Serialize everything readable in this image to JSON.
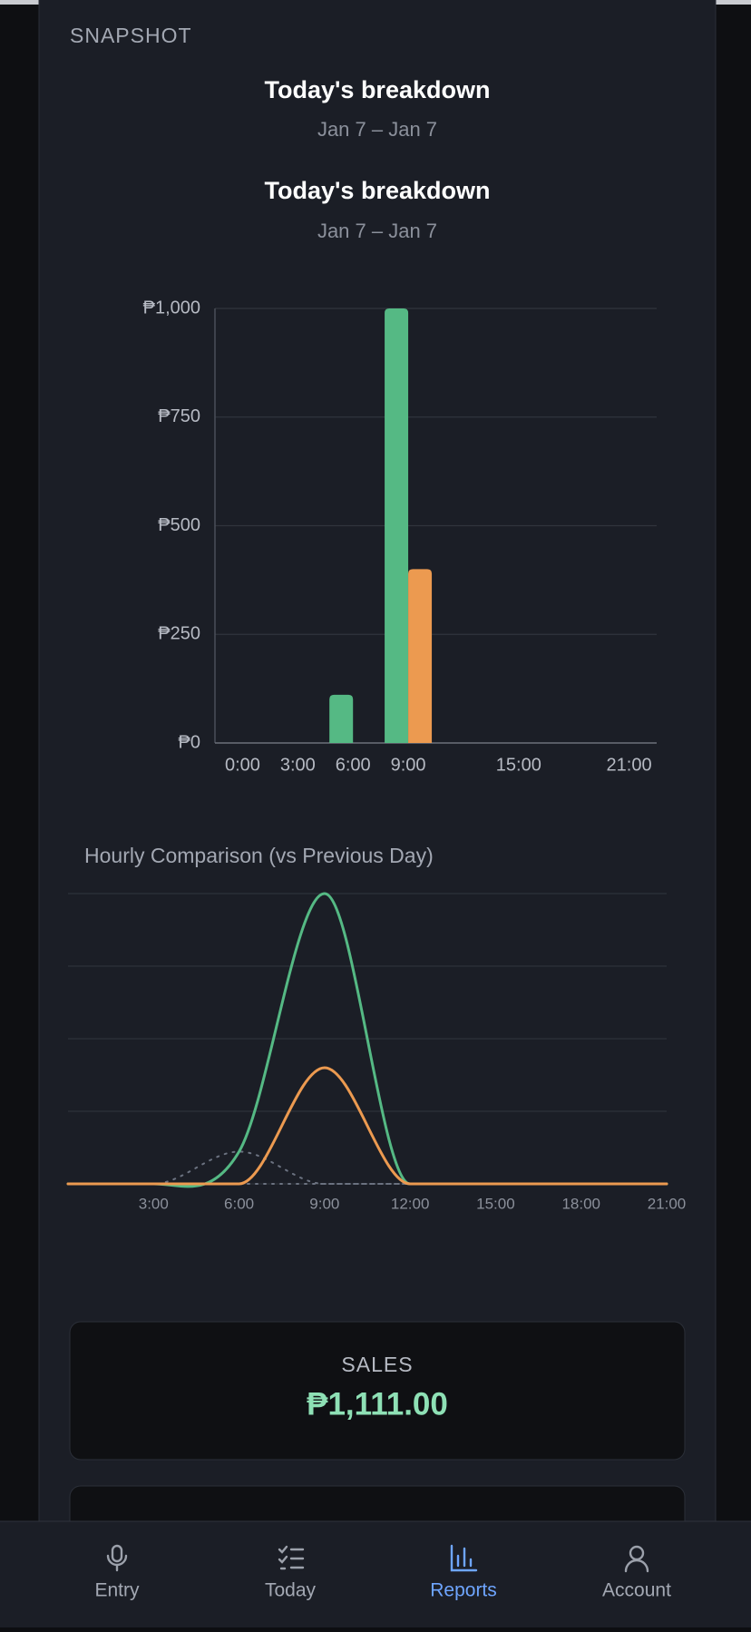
{
  "section_label": "SNAPSHOT",
  "heading": {
    "title": "Today's breakdown",
    "subtitle": "Jan 7 – Jan 7"
  },
  "chart_data": [
    {
      "type": "bar",
      "title": "Today's breakdown",
      "subtitle": "Jan 7 – Jan 7",
      "categories": [
        "0:00",
        "3:00",
        "6:00",
        "9:00",
        null,
        "15:00",
        null,
        "21:00"
      ],
      "series": [
        {
          "color": "#55b984",
          "values": [
            0,
            0,
            111,
            1000,
            0,
            0,
            0,
            0
          ]
        },
        {
          "color": "#ec9a50",
          "values": [
            0,
            0,
            0,
            400,
            0,
            0,
            0,
            0
          ]
        }
      ],
      "ylim": [
        0,
        1000
      ],
      "yticks": [
        {
          "value": 0,
          "label": "₱0"
        },
        {
          "value": 250,
          "label": "₱250"
        },
        {
          "value": 500,
          "label": "₱500"
        },
        {
          "value": 750,
          "label": "₱750"
        },
        {
          "value": 1000,
          "label": "₱1,000"
        }
      ],
      "grid": true
    },
    {
      "type": "line",
      "title": "Hourly Comparison (vs Previous Day)",
      "x": [
        0,
        3,
        6,
        9,
        12,
        15,
        18,
        21
      ],
      "xlim": [
        0,
        21
      ],
      "xticks": [
        {
          "value": 3,
          "label": "3:00"
        },
        {
          "value": 6,
          "label": "6:00"
        },
        {
          "value": 9,
          "label": "9:00"
        },
        {
          "value": 12,
          "label": "12:00"
        },
        {
          "value": 15,
          "label": "15:00"
        },
        {
          "value": 18,
          "label": "18:00"
        },
        {
          "value": 21,
          "label": "21:00"
        }
      ],
      "ylim": [
        0,
        1000
      ],
      "grid": true,
      "series": [
        {
          "color": "#6b7280",
          "style": "dotted",
          "values": [
            0,
            0,
            111,
            0,
            0,
            0,
            0,
            0
          ]
        },
        {
          "color": "#6b7280",
          "style": "dotted",
          "values": [
            0,
            0,
            0,
            0,
            0,
            0,
            0,
            0
          ]
        },
        {
          "color": "#55b984",
          "style": "solid",
          "values": [
            0,
            0,
            111,
            1000,
            0,
            0,
            0,
            0
          ]
        },
        {
          "color": "#ec9a50",
          "style": "solid",
          "values": [
            0,
            0,
            0,
            400,
            0,
            0,
            0,
            0
          ]
        }
      ]
    }
  ],
  "summary": {
    "label": "SALES",
    "value": "₱1,111.00"
  },
  "nav": [
    {
      "label": "Entry",
      "active": false
    },
    {
      "label": "Today",
      "active": false
    },
    {
      "label": "Reports",
      "active": true
    },
    {
      "label": "Account",
      "active": false
    }
  ]
}
